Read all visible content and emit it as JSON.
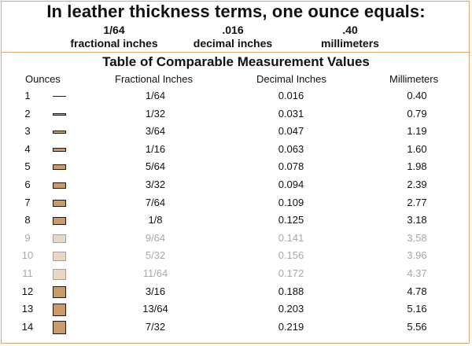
{
  "headline": "In leather thickness terms, one ounce equals:",
  "equivalents": [
    {
      "value": "1/64",
      "unit": "fractional inches"
    },
    {
      "value": ".016",
      "unit": "decimal inches"
    },
    {
      "value": ".40",
      "unit": "millimeters"
    }
  ],
  "table": {
    "title": "Table of Comparable Measurement Values",
    "headers": {
      "ounces": "Ounces",
      "fractional": "Fractional Inches",
      "decimal": "Decimal Inches",
      "mm": "Millimeters"
    },
    "rows": [
      {
        "oz": "1",
        "frac": "1/64",
        "dec": "0.016",
        "mm": "0.40"
      },
      {
        "oz": "2",
        "frac": "1/32",
        "dec": "0.031",
        "mm": "0.79"
      },
      {
        "oz": "3",
        "frac": "3/64",
        "dec": "0.047",
        "mm": "1.19"
      },
      {
        "oz": "4",
        "frac": "1/16",
        "dec": "0.063",
        "mm": "1.60"
      },
      {
        "oz": "5",
        "frac": "5/64",
        "dec": "0.078",
        "mm": "1.98"
      },
      {
        "oz": "6",
        "frac": "3/32",
        "dec": "0.094",
        "mm": "2.39"
      },
      {
        "oz": "7",
        "frac": "7/64",
        "dec": "0.109",
        "mm": "2.77"
      },
      {
        "oz": "8",
        "frac": "1/8",
        "dec": "0.125",
        "mm": "3.18"
      },
      {
        "oz": "9",
        "frac": "9/64",
        "dec": "0.141",
        "mm": "3.58"
      },
      {
        "oz": "10",
        "frac": "5/32",
        "dec": "0.156",
        "mm": "3.96"
      },
      {
        "oz": "11",
        "frac": "11/64",
        "dec": "0.172",
        "mm": "4.37"
      },
      {
        "oz": "12",
        "frac": "3/16",
        "dec": "0.188",
        "mm": "4.78"
      },
      {
        "oz": "13",
        "frac": "13/64",
        "dec": "0.203",
        "mm": "5.16"
      },
      {
        "oz": "14",
        "frac": "7/32",
        "dec": "0.219",
        "mm": "5.56"
      }
    ],
    "faded_rows": [
      "9",
      "10",
      "11"
    ]
  },
  "colors": {
    "leather_fill": "#c99a6a",
    "border_accent": "#e2a46b",
    "faded_text": "#a8a8a8"
  }
}
